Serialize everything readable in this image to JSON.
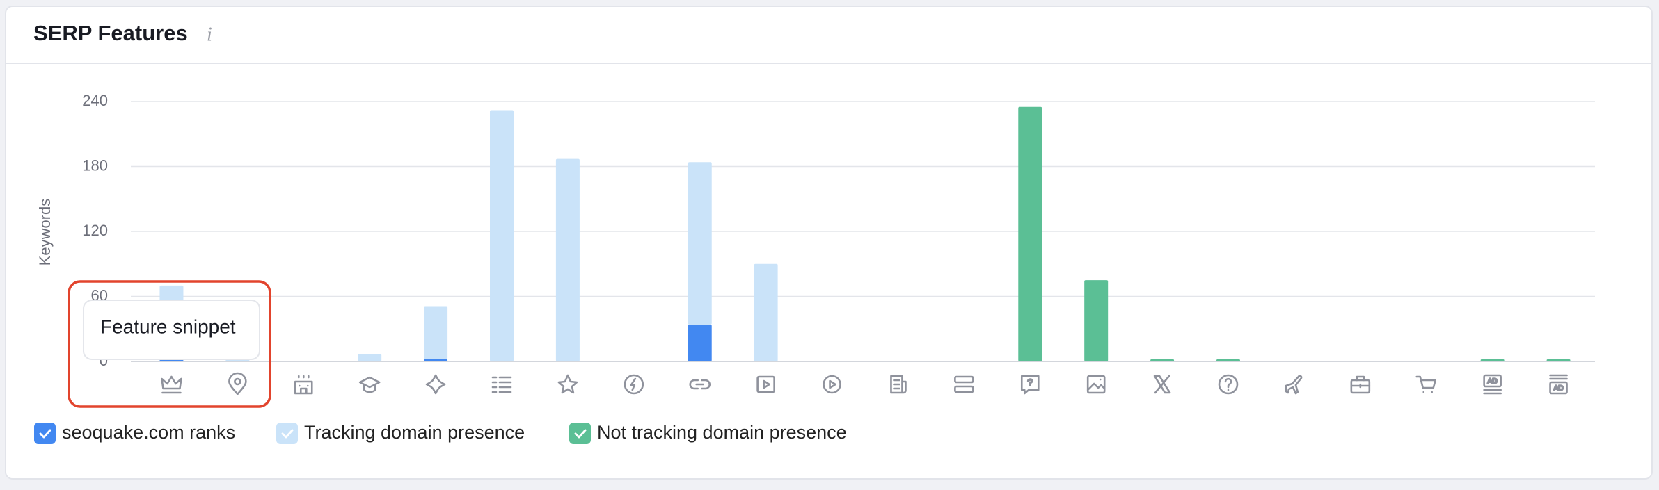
{
  "header": {
    "title": "SERP Features",
    "info_icon": "i"
  },
  "tooltip": "Feature snippet",
  "chart_data": {
    "type": "bar",
    "stacked": true,
    "y_label": "Keywords",
    "categories": [
      null,
      null,
      null,
      null,
      null,
      null,
      null,
      null,
      null,
      null,
      null,
      null,
      null,
      null,
      null,
      null,
      null,
      null,
      null,
      null,
      null,
      null
    ],
    "series": [
      {
        "name": "seoquake.com ranks",
        "color": "#4288f1",
        "values": [
          3,
          0,
          0,
          0,
          2,
          0,
          0,
          0,
          34,
          0,
          0,
          0,
          0,
          0,
          0,
          0,
          0,
          0,
          0,
          0,
          0,
          0
        ]
      },
      {
        "name": "Tracking domain presence",
        "color": "#cae3f9",
        "values": [
          67,
          2,
          0,
          7,
          49,
          232,
          187,
          0,
          150,
          90,
          0,
          0,
          0,
          0,
          0,
          0,
          0,
          0,
          0,
          0,
          0,
          0
        ]
      },
      {
        "name": "Not tracking domain presence",
        "color": "#5bbf95",
        "values": [
          0,
          0,
          0,
          0,
          0,
          0,
          0,
          0,
          0,
          0,
          0,
          0,
          0,
          235,
          75,
          2,
          2,
          0,
          0,
          0,
          2,
          2
        ]
      }
    ],
    "ylim": [
      0,
      240
    ],
    "yticks": [
      0,
      60,
      120,
      180,
      240
    ],
    "grid": true
  }
}
